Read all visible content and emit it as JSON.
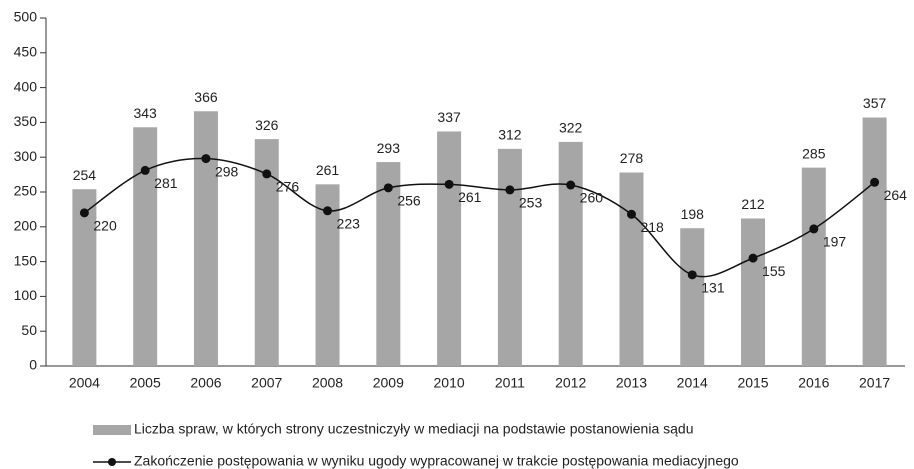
{
  "chart_data": {
    "type": "bar_line",
    "categories": [
      "2004",
      "2005",
      "2006",
      "2007",
      "2008",
      "2009",
      "2010",
      "2011",
      "2012",
      "2013",
      "2014",
      "2015",
      "2016",
      "2017"
    ],
    "series": [
      {
        "name": "Liczba spraw, w których strony uczestniczyły w mediacji na podstawie postanowienia sądu",
        "type": "bar",
        "color": "#a6a6a6",
        "values": [
          254,
          343,
          366,
          326,
          261,
          293,
          337,
          312,
          322,
          278,
          198,
          212,
          285,
          357
        ]
      },
      {
        "name": "Zakończenie postępowania w wyniku ugody wypracowanej w trakcie postępowania mediacyjnego",
        "type": "line",
        "color": "#111111",
        "values": [
          220,
          281,
          298,
          276,
          223,
          256,
          261,
          253,
          260,
          218,
          131,
          155,
          197,
          264
        ]
      }
    ],
    "ylim": [
      0,
      500
    ],
    "yticks": [
      0,
      50,
      100,
      150,
      200,
      250,
      300,
      350,
      400,
      450,
      500
    ],
    "grid": false
  }
}
